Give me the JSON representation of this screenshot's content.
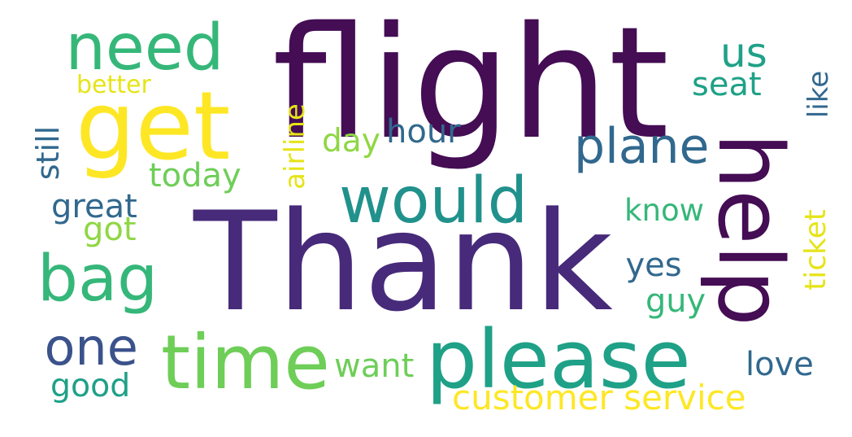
{
  "words": {
    "thank": "Thank",
    "flight": "flight",
    "help": "help",
    "please": "please",
    "get": "get",
    "time": "time",
    "would": "would",
    "need": "need",
    "plane": "plane",
    "bag": "bag",
    "one": "one",
    "us": "us",
    "customer_service": "customer service",
    "ticket": "ticket",
    "airline": "airline",
    "like": "like",
    "still": "still",
    "today": "today",
    "great": "great",
    "hour": "hour",
    "seat": "seat",
    "know": "know",
    "day": "day",
    "got": "got",
    "better": "better",
    "yes": "yes",
    "guy": "guy",
    "want": "want",
    "love": "love",
    "good": "good"
  },
  "colors": {
    "background": "#ffffff",
    "dark_purple": "#440d54",
    "indigo": "#472a7a",
    "slate_blue": "#3b528b",
    "steel": "#31688e",
    "teal": "#21918c",
    "sea_green": "#1fa187",
    "green": "#35b779",
    "light_green": "#6ece58",
    "lime": "#8fd744",
    "yellow": "#fde725",
    "pale_yellow": "#e6e418"
  }
}
